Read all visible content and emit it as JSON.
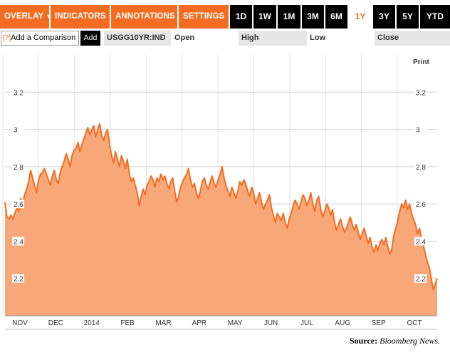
{
  "toolbar": {
    "menus": [
      {
        "id": "overlay",
        "label": "OVERLAY"
      },
      {
        "id": "indicators",
        "label": "INDICATORS"
      },
      {
        "id": "annotations",
        "label": "ANNOTATIONS"
      },
      {
        "id": "settings",
        "label": "SETTINGS"
      }
    ],
    "ranges": [
      "1D",
      "1W",
      "1M",
      "3M",
      "6M",
      "1Y",
      "3Y",
      "5Y",
      "YTD"
    ],
    "active_range": "1Y",
    "menu_color": "#f36c21"
  },
  "comparison": {
    "help": "[?]",
    "label": "Add a Comparison",
    "add_button": "Add"
  },
  "quote": {
    "ticker": "USGG10YR:IND",
    "open_label": "Open",
    "high_label": "High",
    "low_label": "Low",
    "close_label": "Close"
  },
  "print_label": "Print",
  "source": {
    "label": "Source:",
    "name": "Bloomberg News."
  },
  "chart_data": {
    "type": "area",
    "title": "",
    "xlabel": "",
    "ylabel": "",
    "ylim": [
      2.0,
      3.4
    ],
    "yticks": [
      2.2,
      2.4,
      2.6,
      2.8,
      3.0,
      3.2
    ],
    "ytick_labels": [
      "2.2",
      "2.4",
      "2.6",
      "2.8",
      "3",
      "3.2"
    ],
    "x_labels": [
      "NOV",
      "DEC",
      "2014",
      "FEB",
      "MAR",
      "APR",
      "MAY",
      "JUN",
      "JUL",
      "AUG",
      "SEP",
      "OCT"
    ],
    "grid": true,
    "line_color": "#f36c21",
    "fill_color": "#f8a878",
    "series": [
      {
        "values": [
          2.61,
          2.53,
          2.52,
          2.54,
          2.52,
          2.55,
          2.58,
          2.56,
          2.63,
          2.6,
          2.65,
          2.68,
          2.72,
          2.78,
          2.74,
          2.7,
          2.66,
          2.73,
          2.76,
          2.77,
          2.79,
          2.76,
          2.73,
          2.7,
          2.75,
          2.78,
          2.73,
          2.71,
          2.77,
          2.8,
          2.83,
          2.87,
          2.84,
          2.8,
          2.86,
          2.89,
          2.9,
          2.93,
          2.88,
          2.92,
          2.95,
          2.98,
          3.01,
          2.97,
          3.0,
          3.02,
          2.96,
          3.0,
          3.03,
          2.97,
          2.94,
          2.98,
          3.0,
          2.92,
          2.86,
          2.82,
          2.88,
          2.84,
          2.8,
          2.86,
          2.83,
          2.79,
          2.84,
          2.76,
          2.72,
          2.74,
          2.7,
          2.66,
          2.59,
          2.64,
          2.68,
          2.65,
          2.7,
          2.72,
          2.75,
          2.73,
          2.69,
          2.74,
          2.72,
          2.76,
          2.73,
          2.75,
          2.71,
          2.68,
          2.72,
          2.74,
          2.67,
          2.61,
          2.64,
          2.69,
          2.72,
          2.74,
          2.76,
          2.79,
          2.73,
          2.69,
          2.71,
          2.66,
          2.63,
          2.67,
          2.72,
          2.74,
          2.7,
          2.68,
          2.72,
          2.75,
          2.71,
          2.69,
          2.73,
          2.76,
          2.8,
          2.74,
          2.7,
          2.67,
          2.64,
          2.69,
          2.66,
          2.63,
          2.67,
          2.72,
          2.7,
          2.73,
          2.71,
          2.67,
          2.64,
          2.69,
          2.66,
          2.6,
          2.63,
          2.66,
          2.61,
          2.57,
          2.6,
          2.62,
          2.65,
          2.58,
          2.54,
          2.5,
          2.55,
          2.53,
          2.51,
          2.55,
          2.5,
          2.47,
          2.52,
          2.55,
          2.59,
          2.62,
          2.6,
          2.57,
          2.61,
          2.65,
          2.63,
          2.59,
          2.62,
          2.66,
          2.6,
          2.56,
          2.62,
          2.64,
          2.57,
          2.53,
          2.56,
          2.6,
          2.58,
          2.54,
          2.57,
          2.5,
          2.46,
          2.49,
          2.52,
          2.48,
          2.45,
          2.47,
          2.5,
          2.53,
          2.49,
          2.46,
          2.49,
          2.45,
          2.41,
          2.44,
          2.47,
          2.43,
          2.39,
          2.42,
          2.37,
          2.34,
          2.38,
          2.35,
          2.39,
          2.41,
          2.38,
          2.42,
          2.37,
          2.33,
          2.36,
          2.43,
          2.47,
          2.51,
          2.56,
          2.6,
          2.58,
          2.62,
          2.57,
          2.6,
          2.55,
          2.52,
          2.49,
          2.44,
          2.47,
          2.42,
          2.38,
          2.33,
          2.29,
          2.26,
          2.2,
          2.14,
          2.17,
          2.2
        ]
      }
    ]
  }
}
